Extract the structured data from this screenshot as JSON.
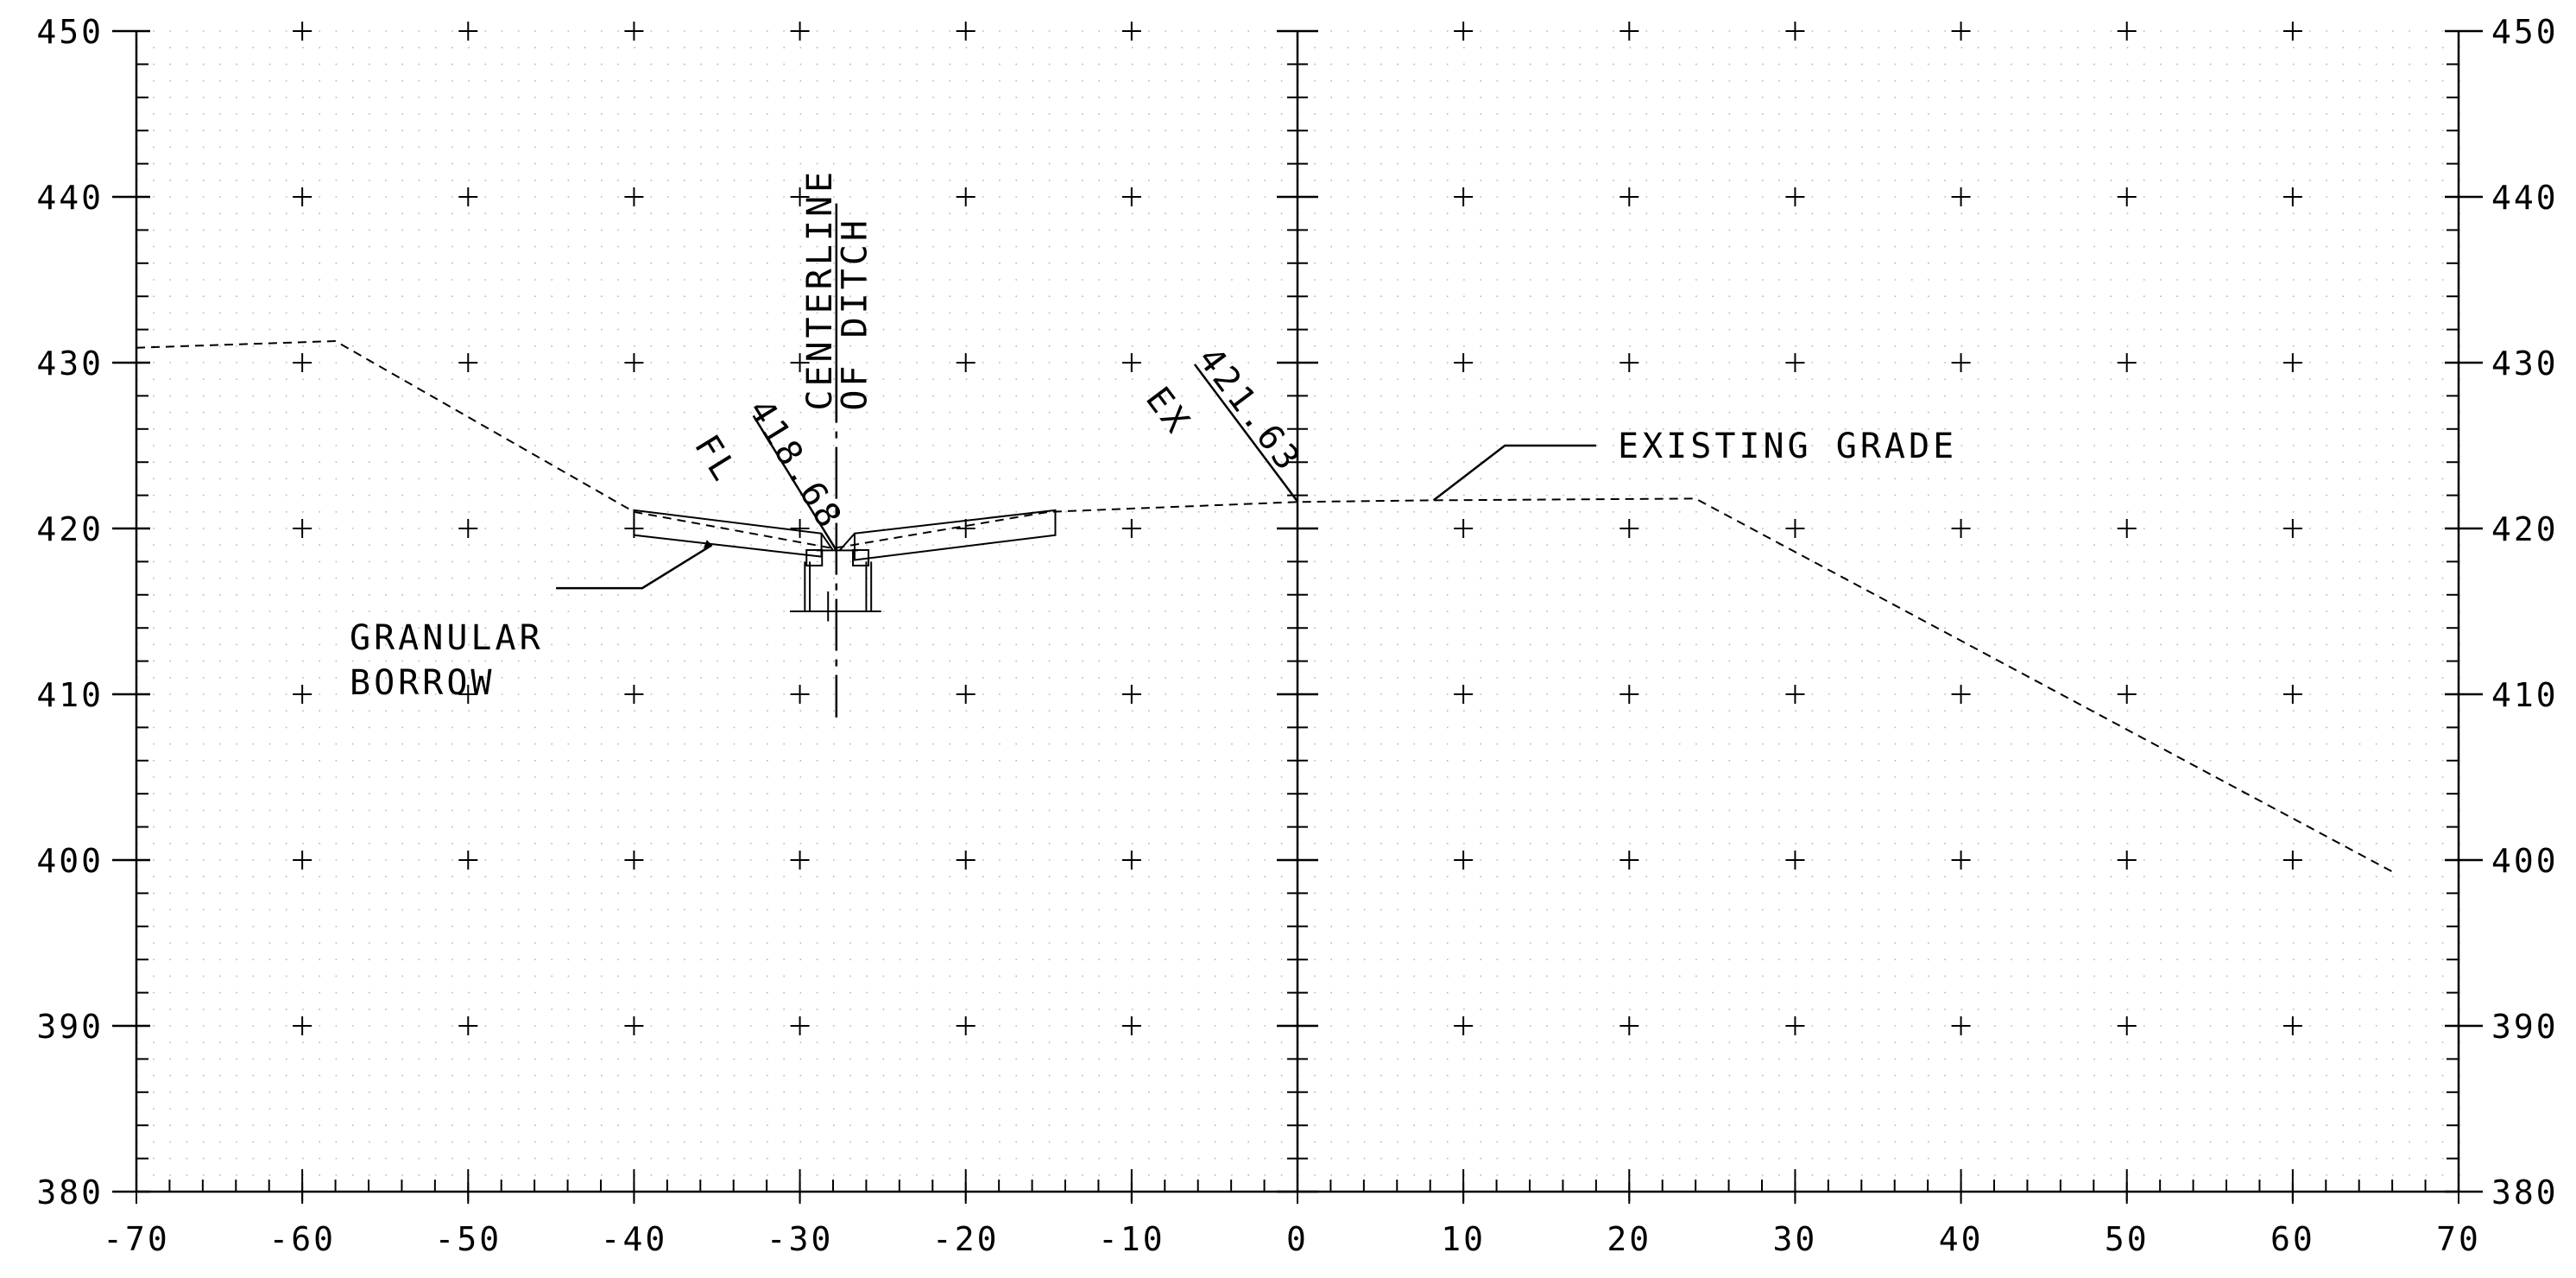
{
  "chart_data": {
    "type": "line",
    "x_ticks": [
      -70,
      -60,
      -50,
      -40,
      -30,
      -20,
      -10,
      0,
      10,
      20,
      30,
      40,
      50,
      60,
      70
    ],
    "x_tick_labels": [
      "-70",
      "-60",
      "-50",
      "-40",
      "-30",
      "-20",
      "-10",
      "0",
      "10",
      "20",
      "30",
      "40",
      "50",
      "60",
      "70"
    ],
    "y_ticks": [
      380,
      390,
      400,
      410,
      420,
      430,
      440,
      450
    ],
    "y_tick_labels": [
      "380",
      "390",
      "400",
      "410",
      "420",
      "430",
      "440",
      "450"
    ],
    "xlim": [
      -70,
      70
    ],
    "ylim": [
      380,
      450
    ],
    "grid": true,
    "existing_grade": {
      "x": [
        -70,
        -58,
        -40,
        -28,
        -15,
        0,
        8,
        24,
        66
      ],
      "y": [
        430.9,
        431.3,
        421.0,
        418.8,
        421.0,
        421.6,
        421.7,
        421.8,
        399.3
      ]
    },
    "ditch": {
      "centerline_x": -27.8,
      "flowline_elev": 418.68
    },
    "annotations": {
      "centerline_line1": "CENTERLINE",
      "centerline_line2": "OF DITCH",
      "fl_value": "418.68",
      "fl_code": "FL",
      "ex_value": "421.63",
      "ex_code": "EX",
      "existing_grade": "EXISTING GRADE",
      "granular_line1": "GRANULAR",
      "granular_line2": "BORROW"
    }
  }
}
